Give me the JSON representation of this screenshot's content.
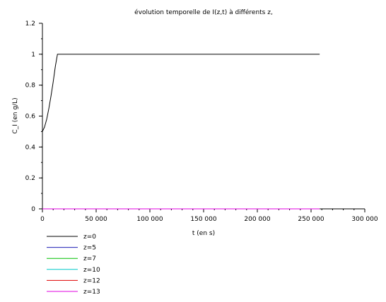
{
  "chart_data": {
    "type": "line",
    "title": "évolution temporelle de I(z,t) à différents z,",
    "xlabel": "t (en s)",
    "ylabel": "C_I (en g/L)",
    "xlim": [
      0,
      300000
    ],
    "ylim": [
      0,
      1.2
    ],
    "xticks": [
      0,
      50000,
      100000,
      150000,
      200000,
      250000,
      300000
    ],
    "xtick_labels": [
      "0",
      "50 000",
      "100 000",
      "150 000",
      "200 000",
      "250 000",
      "300 000"
    ],
    "yticks": [
      0,
      0.2,
      0.4,
      0.6,
      0.8,
      1,
      1.2
    ],
    "ytick_labels": [
      "0",
      "0.2",
      "0.4",
      "0.6",
      "0.8",
      "1",
      "1.2"
    ],
    "grid": false,
    "legend_position": "bottom-left",
    "series": [
      {
        "name": "z=0",
        "color": "#000000",
        "x": [
          0,
          2000,
          4000,
          6000,
          8000,
          10000,
          12000,
          14000,
          258000
        ],
        "y": [
          0.5,
          0.53,
          0.58,
          0.65,
          0.73,
          0.82,
          0.92,
          1.0,
          1.0
        ]
      },
      {
        "name": "z=5",
        "color": "#1e1eb4",
        "x": [
          0,
          258000
        ],
        "y": [
          0,
          0
        ]
      },
      {
        "name": "z=7",
        "color": "#00c000",
        "x": [
          0,
          258000
        ],
        "y": [
          0,
          0
        ]
      },
      {
        "name": "z=10",
        "color": "#00c8c8",
        "x": [
          0,
          258000
        ],
        "y": [
          0,
          0
        ]
      },
      {
        "name": "z=12",
        "color": "#e00000",
        "x": [
          0,
          258000
        ],
        "y": [
          0,
          0
        ]
      },
      {
        "name": "z=13",
        "color": "#e000e0",
        "x": [
          0,
          258000
        ],
        "y": [
          0,
          0
        ]
      }
    ]
  }
}
